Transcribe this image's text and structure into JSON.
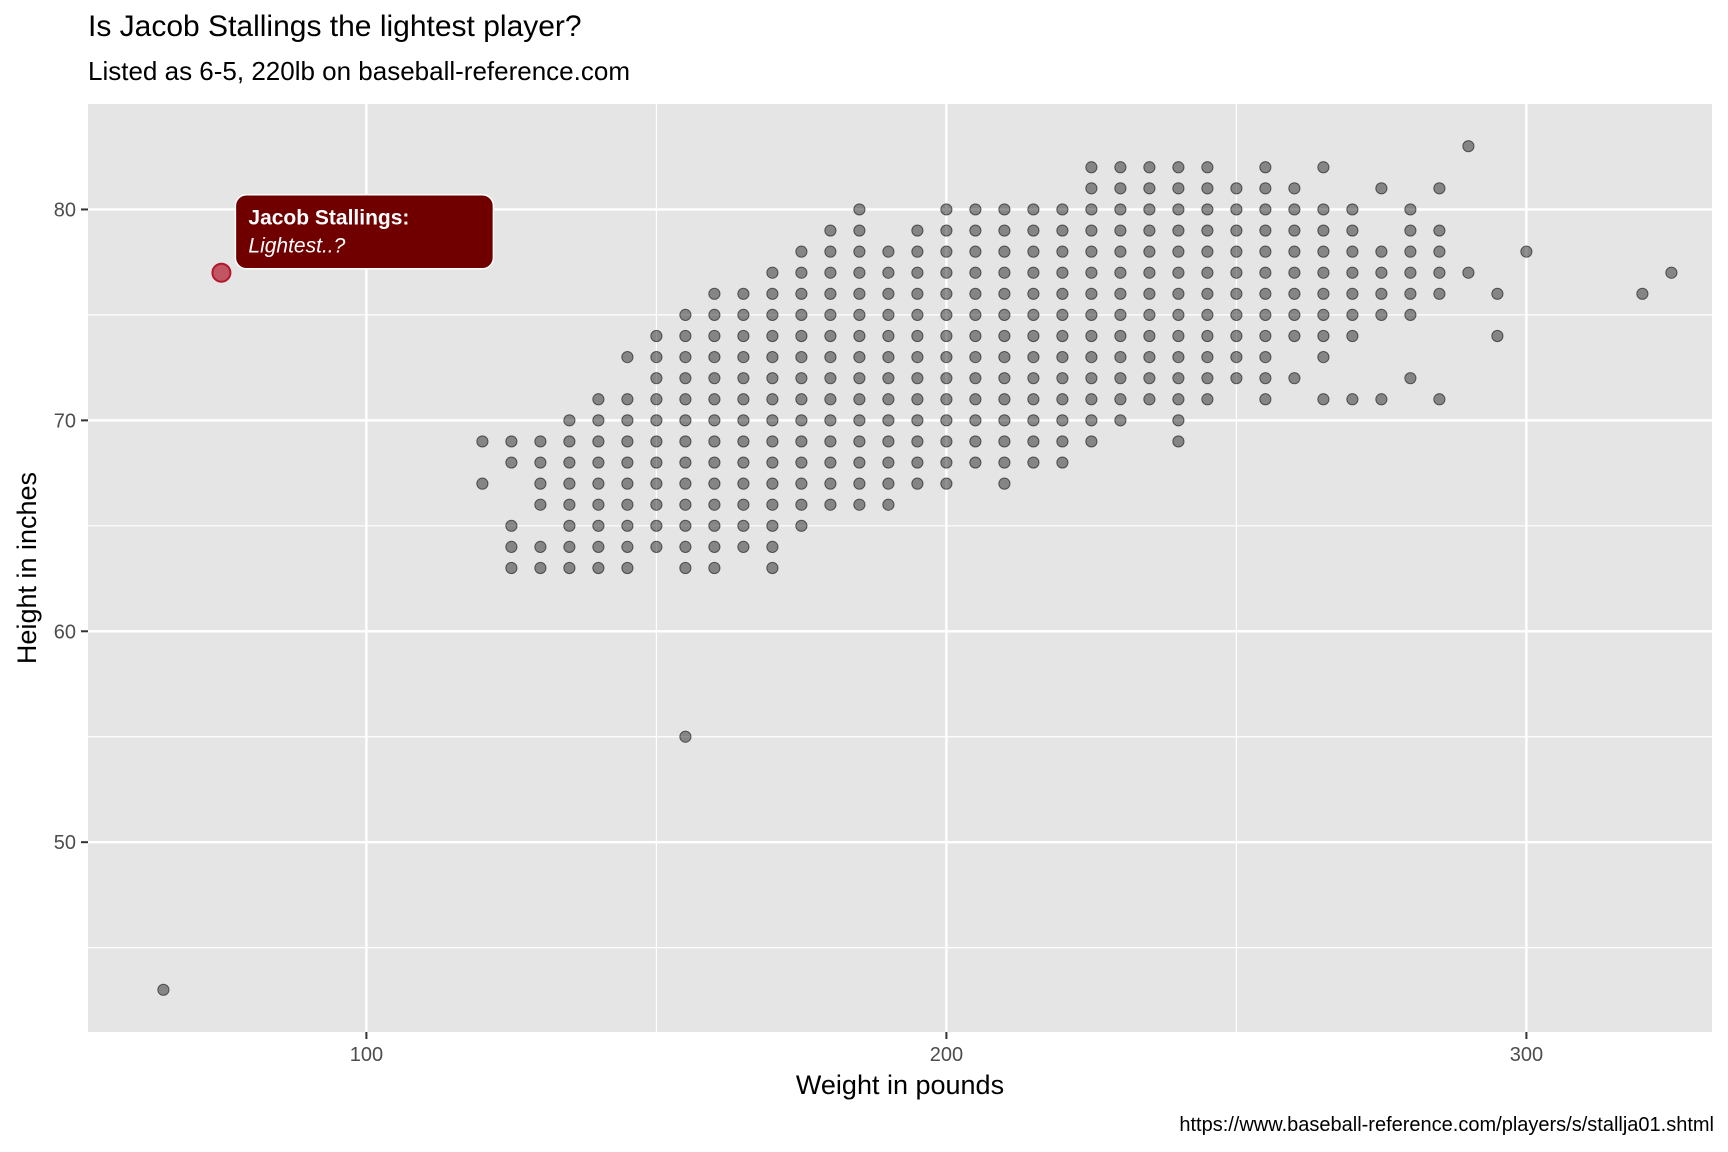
{
  "chart_data": {
    "type": "scatter",
    "title": "Is Jacob Stallings the lightest player?",
    "subtitle": "Listed as 6-5, 220lb on baseball-reference.com",
    "xlabel": "Weight in pounds",
    "ylabel": "Height in inches",
    "caption": "https://www.baseball-reference.com/players/s/stallja01.shtml",
    "xlim": [
      52,
      332
    ],
    "ylim": [
      41,
      85
    ],
    "x_ticks": [
      100,
      200,
      300
    ],
    "y_ticks": [
      50,
      60,
      70,
      80
    ],
    "x_tick_labels": [
      "100",
      "200",
      "300"
    ],
    "y_tick_labels": [
      "50",
      "60",
      "70",
      "80"
    ],
    "grid": true,
    "colors": {
      "panel": "#e5e5e5",
      "gridline": "#ffffff",
      "point": "#000000",
      "highlight": "#b2182b",
      "label_fill": "#700000",
      "label_text": "#ffffff"
    },
    "highlight": {
      "x": 75,
      "y": 77,
      "label_line1": "Jacob Stallings:",
      "label_line2": "Lightest..?"
    },
    "rows": [
      {
        "y": 83,
        "x": [
          290
        ]
      },
      {
        "y": 82,
        "x": [
          225,
          230,
          235,
          240,
          245,
          255,
          265
        ]
      },
      {
        "y": 81,
        "x": [
          225,
          230,
          235,
          240,
          245,
          250,
          255,
          260,
          275,
          285
        ]
      },
      {
        "y": 80,
        "x": [
          185,
          200,
          205,
          210,
          215,
          220,
          225,
          230,
          235,
          240,
          245,
          250,
          255,
          260,
          265,
          270,
          280
        ]
      },
      {
        "y": 79,
        "x": [
          180,
          185,
          195,
          200,
          205,
          210,
          215,
          220,
          225,
          230,
          235,
          240,
          245,
          250,
          255,
          260,
          265,
          270,
          280,
          285
        ]
      },
      {
        "y": 78,
        "x": [
          175,
          180,
          185,
          190,
          195,
          200,
          205,
          210,
          215,
          220,
          225,
          230,
          235,
          240,
          245,
          250,
          255,
          260,
          265,
          270,
          275,
          280,
          285,
          300
        ]
      },
      {
        "y": 77,
        "x": [
          170,
          175,
          180,
          185,
          190,
          195,
          200,
          205,
          210,
          215,
          220,
          225,
          230,
          235,
          240,
          245,
          250,
          255,
          260,
          265,
          270,
          275,
          280,
          285,
          290,
          325
        ]
      },
      {
        "y": 76,
        "x": [
          160,
          165,
          170,
          175,
          180,
          185,
          190,
          195,
          200,
          205,
          210,
          215,
          220,
          225,
          230,
          235,
          240,
          245,
          250,
          255,
          260,
          265,
          270,
          275,
          280,
          285,
          295,
          320
        ]
      },
      {
        "y": 75,
        "x": [
          155,
          160,
          165,
          170,
          175,
          180,
          185,
          190,
          195,
          200,
          205,
          210,
          215,
          220,
          225,
          230,
          235,
          240,
          245,
          250,
          255,
          260,
          265,
          270,
          275,
          280
        ]
      },
      {
        "y": 74,
        "x": [
          150,
          155,
          160,
          165,
          170,
          175,
          180,
          185,
          190,
          195,
          200,
          205,
          210,
          215,
          220,
          225,
          230,
          235,
          240,
          245,
          250,
          255,
          260,
          265,
          270,
          295
        ]
      },
      {
        "y": 73,
        "x": [
          145,
          150,
          155,
          160,
          165,
          170,
          175,
          180,
          185,
          190,
          195,
          200,
          205,
          210,
          215,
          220,
          225,
          230,
          235,
          240,
          245,
          250,
          255,
          265
        ]
      },
      {
        "y": 72,
        "x": [
          150,
          155,
          160,
          165,
          170,
          175,
          180,
          185,
          190,
          195,
          200,
          205,
          210,
          215,
          220,
          225,
          230,
          235,
          240,
          245,
          250,
          255,
          260,
          280
        ]
      },
      {
        "y": 71,
        "x": [
          140,
          145,
          150,
          155,
          160,
          165,
          170,
          175,
          180,
          185,
          190,
          195,
          200,
          205,
          210,
          215,
          220,
          225,
          230,
          235,
          240,
          245,
          255,
          265,
          270,
          275,
          285
        ]
      },
      {
        "y": 70,
        "x": [
          135,
          140,
          145,
          150,
          155,
          160,
          165,
          170,
          175,
          180,
          185,
          190,
          195,
          200,
          205,
          210,
          215,
          220,
          225,
          230,
          240
        ]
      },
      {
        "y": 69,
        "x": [
          120,
          125,
          130,
          135,
          140,
          145,
          150,
          155,
          160,
          165,
          170,
          175,
          180,
          185,
          190,
          195,
          200,
          205,
          210,
          215,
          220,
          225,
          240
        ]
      },
      {
        "y": 68,
        "x": [
          125,
          130,
          135,
          140,
          145,
          150,
          155,
          160,
          165,
          170,
          175,
          180,
          185,
          190,
          195,
          200,
          205,
          210,
          215,
          220
        ]
      },
      {
        "y": 67,
        "x": [
          120,
          130,
          135,
          140,
          145,
          150,
          155,
          160,
          165,
          170,
          175,
          180,
          185,
          190,
          195,
          200,
          210
        ]
      },
      {
        "y": 66,
        "x": [
          130,
          135,
          140,
          145,
          150,
          155,
          160,
          165,
          170,
          175,
          180,
          185,
          190
        ]
      },
      {
        "y": 65,
        "x": [
          125,
          135,
          140,
          145,
          150,
          155,
          160,
          165,
          170,
          175
        ]
      },
      {
        "y": 64,
        "x": [
          125,
          130,
          135,
          140,
          145,
          150,
          155,
          160,
          165,
          170
        ]
      },
      {
        "y": 63,
        "x": [
          125,
          130,
          135,
          140,
          145,
          155,
          160,
          170
        ]
      },
      {
        "y": 55,
        "x": [
          155
        ]
      },
      {
        "y": 43,
        "x": [
          65
        ]
      }
    ]
  }
}
